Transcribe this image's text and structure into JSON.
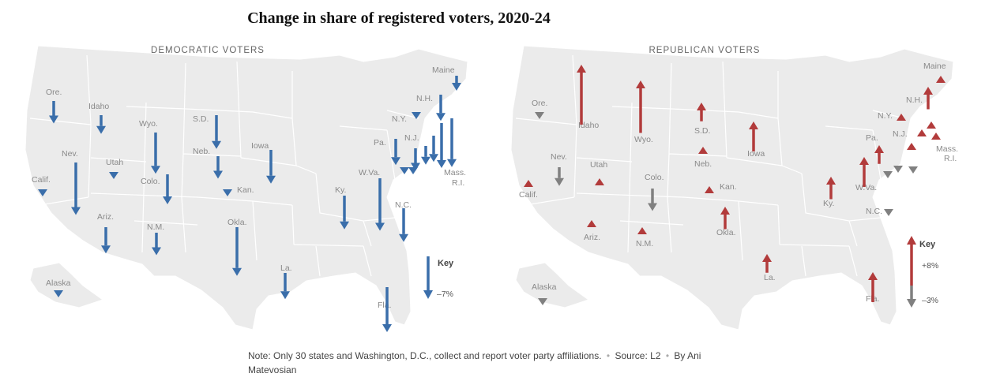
{
  "title": "Change in share of registered voters, 2020-24",
  "colors": {
    "democratic": "#3a6eaa",
    "republican": "#b23b3b",
    "neutral": "#808080",
    "land": "#ebebeb",
    "border": "#ffffff",
    "label": "#8a8a8a"
  },
  "panels": [
    {
      "id": "dem",
      "heading": "DEMOCRATIC VOTERS",
      "key": {
        "label": "Key",
        "values": [
          "–7%"
        ]
      },
      "states": [
        {
          "name": "Ore.",
          "dir": "down",
          "mag": 3.0,
          "color": "democratic"
        },
        {
          "name": "Idaho",
          "dir": "down",
          "mag": 2.5,
          "color": "democratic"
        },
        {
          "name": "Wyo.",
          "dir": "down",
          "mag": 5.5,
          "color": "democratic"
        },
        {
          "name": "S.D.",
          "dir": "down",
          "mag": 4.5,
          "color": "democratic"
        },
        {
          "name": "Iowa",
          "dir": "down",
          "mag": 4.5,
          "color": "democratic"
        },
        {
          "name": "Nev.",
          "dir": "down",
          "mag": 7.0,
          "color": "democratic"
        },
        {
          "name": "Utah",
          "dir": "tri",
          "mag": 0,
          "color": "democratic"
        },
        {
          "name": "Neb.",
          "dir": "down",
          "mag": 3.0,
          "color": "democratic"
        },
        {
          "name": "Calif.",
          "dir": "tri",
          "mag": 0,
          "color": "democratic"
        },
        {
          "name": "Colo.",
          "dir": "down",
          "mag": 4.0,
          "color": "democratic"
        },
        {
          "name": "Kan.",
          "dir": "tri",
          "mag": 0,
          "color": "democratic"
        },
        {
          "name": "Ariz.",
          "dir": "down",
          "mag": 3.5,
          "color": "democratic"
        },
        {
          "name": "N.M.",
          "dir": "down",
          "mag": 3.0,
          "color": "democratic"
        },
        {
          "name": "Okla.",
          "dir": "down",
          "mag": 6.5,
          "color": "democratic"
        },
        {
          "name": "Alaska",
          "dir": "tri",
          "mag": 0,
          "color": "democratic"
        },
        {
          "name": "La.",
          "dir": "down",
          "mag": 3.5,
          "color": "democratic"
        },
        {
          "name": "Fla.",
          "dir": "down",
          "mag": 6.0,
          "color": "democratic"
        },
        {
          "name": "Ky.",
          "dir": "down",
          "mag": 4.5,
          "color": "democratic"
        },
        {
          "name": "W.Va.",
          "dir": "down",
          "mag": 7.0,
          "color": "democratic"
        },
        {
          "name": "N.C.",
          "dir": "down",
          "mag": 4.5,
          "color": "democratic"
        },
        {
          "name": "Pa.",
          "dir": "down",
          "mag": 3.5,
          "color": "democratic"
        },
        {
          "name": "N.J.",
          "dir": "down",
          "mag": 3.0,
          "color": "democratic"
        },
        {
          "name": "N.Y.",
          "dir": "tri",
          "mag": 0,
          "color": "democratic"
        },
        {
          "name": "N.H.",
          "dir": "down",
          "mag": 3.5,
          "color": "democratic"
        },
        {
          "name": "Maine",
          "dir": "down",
          "mag": 2.0,
          "color": "democratic"
        },
        {
          "name": "Mass.",
          "dir": "down",
          "mag": 6.5,
          "color": "democratic"
        },
        {
          "name": "R.I.",
          "dir": "down",
          "mag": 6.0,
          "color": "democratic"
        },
        {
          "name": "",
          "dir": "down",
          "mag": 3.5,
          "color": "democratic"
        },
        {
          "name": "",
          "dir": "down",
          "mag": 2.5,
          "color": "democratic"
        },
        {
          "name": "",
          "dir": "tri",
          "mag": 0,
          "color": "democratic"
        },
        {
          "name": "",
          "dir": "tri",
          "mag": 0,
          "color": "democratic"
        }
      ]
    },
    {
      "id": "rep",
      "heading": "REPUBLICAN VOTERS",
      "key": {
        "label": "Key",
        "values": [
          "+8%",
          "–3%"
        ]
      },
      "states": [
        {
          "name": "Ore.",
          "dir": "tri-down",
          "mag": 0,
          "color": "neutral"
        },
        {
          "name": "Idaho",
          "dir": "up",
          "mag": 8.0,
          "color": "republican"
        },
        {
          "name": "Wyo.",
          "dir": "up",
          "mag": 7.0,
          "color": "republican"
        },
        {
          "name": "S.D.",
          "dir": "up",
          "mag": 2.5,
          "color": "republican"
        },
        {
          "name": "Iowa",
          "dir": "up",
          "mag": 4.0,
          "color": "republican"
        },
        {
          "name": "Nev.",
          "dir": "down",
          "mag": 2.5,
          "color": "neutral"
        },
        {
          "name": "Utah",
          "dir": "tri-up",
          "mag": 0,
          "color": "republican"
        },
        {
          "name": "Neb.",
          "dir": "tri-up",
          "mag": 0,
          "color": "republican"
        },
        {
          "name": "Calif.",
          "dir": "tri-up",
          "mag": 0,
          "color": "republican"
        },
        {
          "name": "Colo.",
          "dir": "down",
          "mag": 3.0,
          "color": "neutral"
        },
        {
          "name": "Kan.",
          "dir": "tri-up",
          "mag": 0,
          "color": "republican"
        },
        {
          "name": "Ariz.",
          "dir": "tri-up",
          "mag": 0,
          "color": "republican"
        },
        {
          "name": "N.M.",
          "dir": "tri-up",
          "mag": 0,
          "color": "republican"
        },
        {
          "name": "Okla.",
          "dir": "up",
          "mag": 3.0,
          "color": "republican"
        },
        {
          "name": "Alaska",
          "dir": "tri-down",
          "mag": 0,
          "color": "neutral"
        },
        {
          "name": "La.",
          "dir": "up",
          "mag": 2.5,
          "color": "republican"
        },
        {
          "name": "Fla.",
          "dir": "up",
          "mag": 4.0,
          "color": "republican"
        },
        {
          "name": "Ky.",
          "dir": "up",
          "mag": 3.0,
          "color": "republican"
        },
        {
          "name": "W.Va.",
          "dir": "up",
          "mag": 4.0,
          "color": "republican"
        },
        {
          "name": "N.C.",
          "dir": "tri-down",
          "mag": 0,
          "color": "neutral"
        },
        {
          "name": "Pa.",
          "dir": "up",
          "mag": 2.5,
          "color": "republican"
        },
        {
          "name": "N.J.",
          "dir": "tri-up",
          "mag": 0,
          "color": "republican"
        },
        {
          "name": "N.Y.",
          "dir": "tri-up",
          "mag": 0,
          "color": "republican"
        },
        {
          "name": "N.H.",
          "dir": "up",
          "mag": 3.0,
          "color": "republican"
        },
        {
          "name": "Maine",
          "dir": "tri-up",
          "mag": 0,
          "color": "republican"
        },
        {
          "name": "Mass.",
          "dir": "tri-up",
          "mag": 0,
          "color": "republican"
        },
        {
          "name": "R.I.",
          "dir": "tri-up",
          "mag": 0,
          "color": "republican"
        },
        {
          "name": "",
          "dir": "tri-down",
          "mag": 0,
          "color": "neutral"
        },
        {
          "name": "",
          "dir": "tri-down",
          "mag": 0,
          "color": "neutral"
        },
        {
          "name": "",
          "dir": "tri-down",
          "mag": 0,
          "color": "neutral"
        },
        {
          "name": "",
          "dir": "tri-up",
          "mag": 0,
          "color": "republican"
        }
      ]
    }
  ],
  "note": {
    "text": "Note: Only 30 states and Washington, D.C., collect and report voter party affiliations.",
    "source": "Source: L2",
    "byline": "By Ani Matevosian"
  }
}
